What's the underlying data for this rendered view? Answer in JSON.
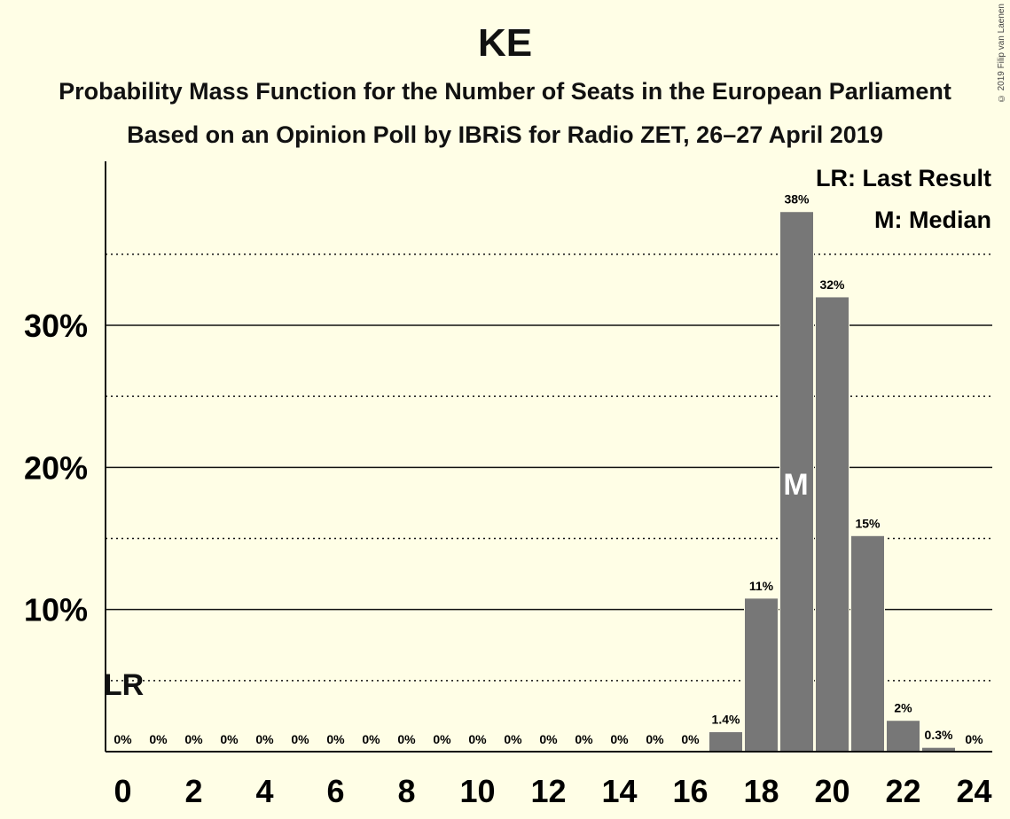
{
  "header": {
    "title": "KE",
    "subtitle": "Probability Mass Function for the Number of Seats in the European Parliament",
    "subtitle2": "Based on an Opinion Poll by IBRiS for Radio ZET, 26–27 April 2019",
    "copyright": "© 2019 Filip van Laenen"
  },
  "legend": {
    "last_result": "LR: Last Result",
    "median": "M: Median",
    "placement": "top-right"
  },
  "markers": {
    "last_result_label": "LR",
    "last_result_seats": 0,
    "median_label": "M",
    "median_seats": 19
  },
  "colors": {
    "background": "#FFFEE6",
    "bar": "#777777",
    "axis": "#111111"
  },
  "chart_data": {
    "type": "bar",
    "x": [
      0,
      1,
      2,
      3,
      4,
      5,
      6,
      7,
      8,
      9,
      10,
      11,
      12,
      13,
      14,
      15,
      16,
      17,
      18,
      19,
      20,
      21,
      22,
      23,
      24
    ],
    "values": [
      0,
      0,
      0,
      0,
      0,
      0,
      0,
      0,
      0,
      0,
      0,
      0,
      0,
      0,
      0,
      0,
      0,
      1.4,
      10.8,
      38,
      32,
      15.2,
      2.2,
      0.3,
      0
    ],
    "data_labels": [
      "0%",
      "0%",
      "0%",
      "0%",
      "0%",
      "0%",
      "0%",
      "0%",
      "0%",
      "0%",
      "0%",
      "0%",
      "0%",
      "0%",
      "0%",
      "0%",
      "0%",
      "1.4%",
      "11%",
      "38%",
      "32%",
      "15%",
      "2%",
      "0.3%",
      "0%"
    ],
    "x_ticks": [
      0,
      2,
      4,
      6,
      8,
      10,
      12,
      14,
      16,
      18,
      20,
      22,
      24
    ],
    "y_ticks": [
      10,
      20,
      30
    ],
    "y_tick_labels": [
      "10%",
      "20%",
      "30%"
    ],
    "y_minor_gridlines": [
      5,
      15,
      25,
      35
    ],
    "ylim": [
      0,
      41.5
    ],
    "grid": true
  }
}
